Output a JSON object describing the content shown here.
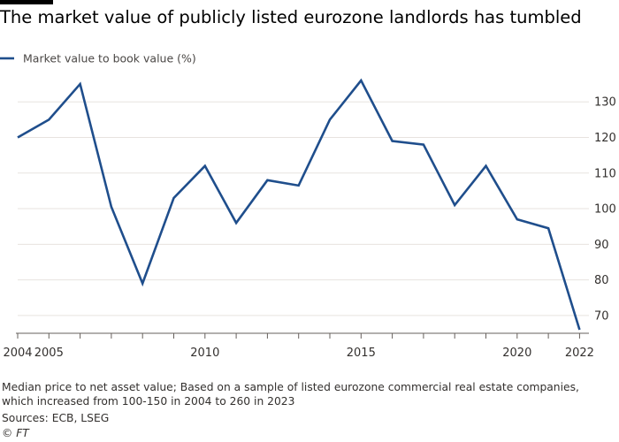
{
  "title": "The market value of publicly listed eurozone landlords has tumbled",
  "footnote": "Median price to net asset value; Based on a sample of listed eurozone commercial real estate companies, which increased from 100-150 in 2004 to 260 in 2023",
  "source": "Sources: ECB, LSEG",
  "credit": "© FT",
  "colors": {
    "series": "#1f4e8c",
    "grid": "#e7e3df",
    "axis": "#66605c",
    "text": "#33302e"
  },
  "chart_data": {
    "type": "line",
    "title": "The market value of publicly listed eurozone landlords has tumbled",
    "xlabel": "",
    "ylabel": "",
    "legend_position": "top-left",
    "grid": true,
    "y_axis_side": "right",
    "xlim": [
      2004,
      2022.3
    ],
    "ylim": [
      65,
      138
    ],
    "y_ticks": [
      70,
      80,
      90,
      100,
      110,
      120,
      130
    ],
    "x_tick_positions": [
      2004,
      2005,
      2006,
      2007,
      2008,
      2009,
      2010,
      2011,
      2012,
      2013,
      2014,
      2015,
      2016,
      2017,
      2018,
      2019,
      2020,
      2021,
      2022
    ],
    "x_tick_labels": [
      {
        "x": 2004,
        "label": "2004"
      },
      {
        "x": 2005,
        "label": "2005"
      },
      {
        "x": 2010,
        "label": "2010"
      },
      {
        "x": 2015,
        "label": "2015"
      },
      {
        "x": 2020,
        "label": "2020"
      },
      {
        "x": 2022,
        "label": "2022"
      }
    ],
    "series": [
      {
        "name": "Market value to book value (%)",
        "color": "#1f4e8c",
        "points": [
          {
            "x": 2004.0,
            "y": 120
          },
          {
            "x": 2005.0,
            "y": 125
          },
          {
            "x": 2006.0,
            "y": 135
          },
          {
            "x": 2007.0,
            "y": 100.5
          },
          {
            "x": 2008.0,
            "y": 79
          },
          {
            "x": 2009.0,
            "y": 103
          },
          {
            "x": 2010.0,
            "y": 112
          },
          {
            "x": 2011.0,
            "y": 96
          },
          {
            "x": 2012.0,
            "y": 108
          },
          {
            "x": 2013.0,
            "y": 106.5
          },
          {
            "x": 2014.0,
            "y": 125
          },
          {
            "x": 2015.0,
            "y": 136
          },
          {
            "x": 2016.0,
            "y": 119
          },
          {
            "x": 2017.0,
            "y": 118
          },
          {
            "x": 2018.0,
            "y": 101
          },
          {
            "x": 2019.0,
            "y": 112
          },
          {
            "x": 2020.0,
            "y": 97
          },
          {
            "x": 2021.0,
            "y": 94.5
          },
          {
            "x": 2022.0,
            "y": 66
          }
        ]
      }
    ]
  }
}
